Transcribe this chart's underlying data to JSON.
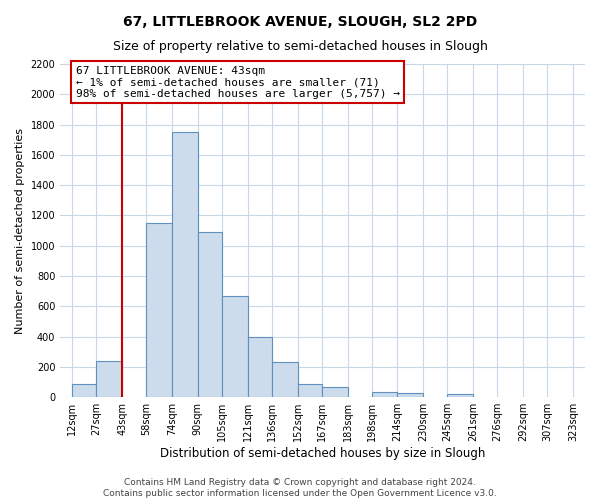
{
  "title": "67, LITTLEBROOK AVENUE, SLOUGH, SL2 2PD",
  "subtitle": "Size of property relative to semi-detached houses in Slough",
  "xlabel": "Distribution of semi-detached houses by size in Slough",
  "ylabel": "Number of semi-detached properties",
  "bins": [
    12,
    27,
    43,
    58,
    74,
    90,
    105,
    121,
    136,
    152,
    167,
    183,
    198,
    214,
    230,
    245,
    261,
    276,
    292,
    307,
    323
  ],
  "bar_heights": [
    85,
    240,
    0,
    1150,
    1750,
    1090,
    670,
    400,
    230,
    85,
    70,
    0,
    35,
    25,
    0,
    20,
    0,
    0,
    0,
    0
  ],
  "bar_color": "#ccdcec",
  "bar_edge_color": "#6090c0",
  "vline_x": 43,
  "vline_color": "#cc0000",
  "annotation_line1": "67 LITTLEBROOK AVENUE: 43sqm",
  "annotation_line2": "← 1% of semi-detached houses are smaller (71)",
  "annotation_line3": "98% of semi-detached houses are larger (5,757) →",
  "annotation_box_color": "#cc0000",
  "ylim": [
    0,
    2200
  ],
  "yticks": [
    0,
    200,
    400,
    600,
    800,
    1000,
    1200,
    1400,
    1600,
    1800,
    2000,
    2200
  ],
  "xtick_labels": [
    "12sqm",
    "27sqm",
    "43sqm",
    "58sqm",
    "74sqm",
    "90sqm",
    "105sqm",
    "121sqm",
    "136sqm",
    "152sqm",
    "167sqm",
    "183sqm",
    "198sqm",
    "214sqm",
    "230sqm",
    "245sqm",
    "261sqm",
    "276sqm",
    "292sqm",
    "307sqm",
    "323sqm"
  ],
  "footer_line1": "Contains HM Land Registry data © Crown copyright and database right 2024.",
  "footer_line2": "Contains public sector information licensed under the Open Government Licence v3.0.",
  "background_color": "#ffffff",
  "grid_color": "#c8d8e8",
  "title_fontsize": 10,
  "subtitle_fontsize": 9,
  "axis_label_fontsize": 8,
  "tick_fontsize": 7,
  "annotation_fontsize": 8,
  "footer_fontsize": 6.5
}
